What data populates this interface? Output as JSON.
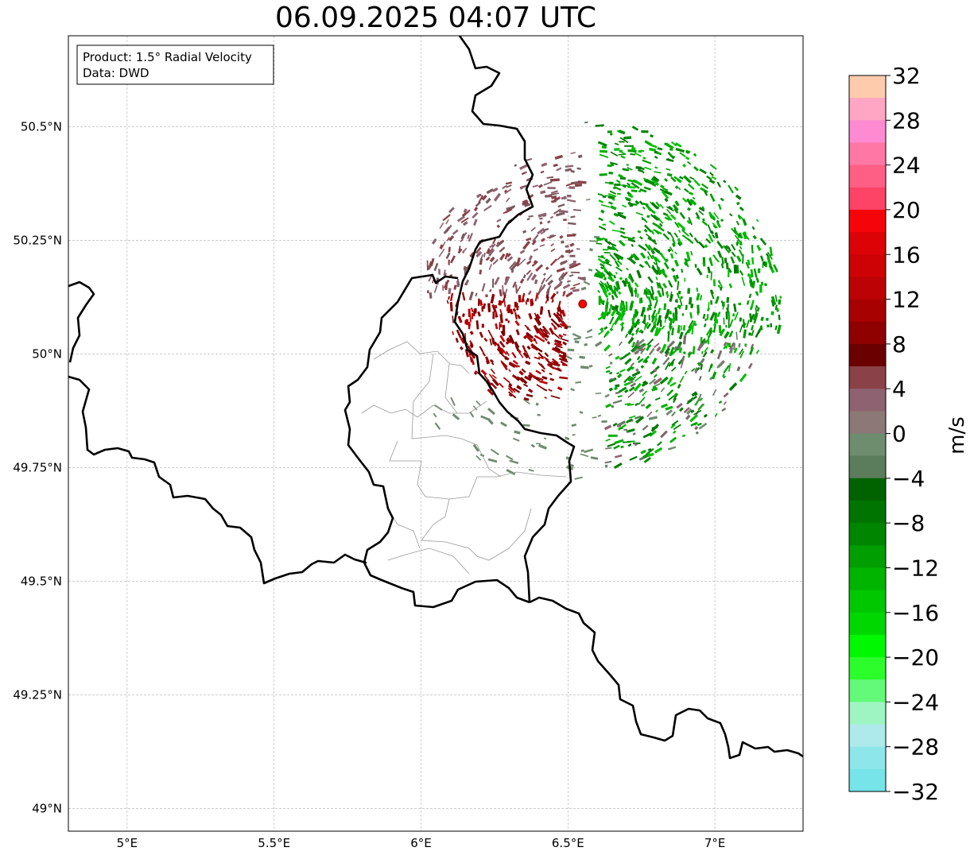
{
  "title": "06.09.2025 04:07 UTC",
  "info": {
    "line1": "Product: 1.5° Radial Velocity",
    "line2": "Data: DWD"
  },
  "map": {
    "lon_ticks": [
      "5°E",
      "5.5°E",
      "6°E",
      "6.5°E",
      "7°E"
    ],
    "lat_ticks": [
      "50.5°N",
      "50.25°N",
      "50°N",
      "49.75°N",
      "49.5°N",
      "49.25°N",
      "49°N"
    ],
    "radar_site": {
      "lon": 6.55,
      "lat": 50.11
    }
  },
  "colorbar": {
    "label": "m/s",
    "tick_labels": [
      "32",
      "28",
      "24",
      "20",
      "16",
      "12",
      "8",
      "4",
      "0",
      "−4",
      "−8",
      "−12",
      "−16",
      "−20",
      "−24",
      "−28",
      "−32"
    ],
    "min": -32,
    "max": 32,
    "colors_top_to_bottom": [
      "#ffcbad",
      "#fea6c3",
      "#fe8ad1",
      "#fe77a5",
      "#fe5f85",
      "#fd4466",
      "#f60508",
      "#db0306",
      "#cc0205",
      "#bc0204",
      "#a80101",
      "#8f0000",
      "#6b0000",
      "#8a4248",
      "#8e6270",
      "#8d7878",
      "#6e8c6e",
      "#5b7d5b",
      "#006300",
      "#007400",
      "#008500",
      "#009e00",
      "#00b400",
      "#00c700",
      "#00d600",
      "#00f800",
      "#2cfe2c",
      "#62fa78",
      "#9ef5c2",
      "#aeeaeb",
      "#8de7ea",
      "#76e4e8"
    ]
  },
  "chart_data": {
    "type": "heatmap",
    "title": "06.09.2025 04:07 UTC",
    "colorbar_label": "m/s",
    "range": [
      -32,
      32
    ],
    "x_extent_lon": [
      4.8,
      7.3
    ],
    "y_extent_lat": [
      48.95,
      50.7
    ],
    "x_ticks": [
      5,
      5.5,
      6,
      6.5,
      7
    ],
    "y_ticks": [
      49,
      49.25,
      49.5,
      49.75,
      50,
      50.25,
      50.5
    ],
    "grid": true
  }
}
